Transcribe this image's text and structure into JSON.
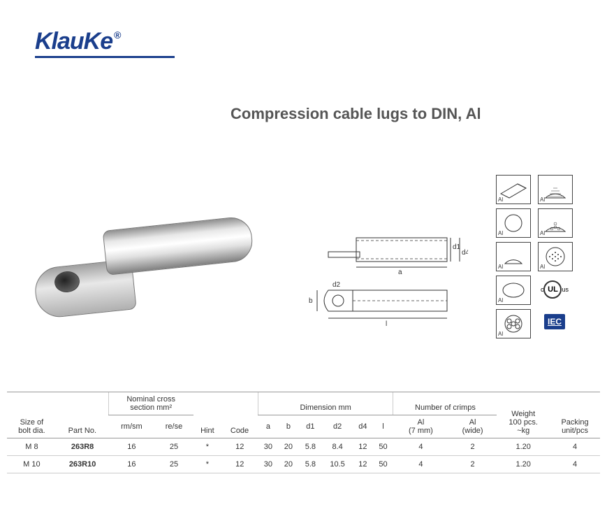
{
  "brand": {
    "name": "KlauKe",
    "registered": "®",
    "color": "#1a3e8c"
  },
  "title": "Compression cable lugs to DIN, Al",
  "drawing": {
    "labels": {
      "a": "a",
      "b": "b",
      "d1": "d1",
      "d2": "d2",
      "d4": "d4",
      "l": "l"
    }
  },
  "icons": {
    "al_label": "Al",
    "ul_c": "c",
    "ul_mark": "UL",
    "ul_us": "us",
    "iec": "IEC"
  },
  "table": {
    "group_headers": {
      "bolt": "Size of\nbolt dia.",
      "partno": "Part No.",
      "ncs": "Nominal cross\nsection mm²",
      "hint": "Hint",
      "code": "Code",
      "dim": "Dimension mm",
      "crimps": "Number of crimps",
      "weight": "Weight\n100 pcs.\n~kg",
      "pack": "Packing\nunit/pcs"
    },
    "sub_headers": {
      "rmsm": "rm/sm",
      "rese": "re/se",
      "a": "a",
      "b": "b",
      "d1": "d1",
      "d2": "d2",
      "d4": "d4",
      "l": "l",
      "al7": "Al\n(7 mm)",
      "alw": "Al\n(wide)"
    },
    "rows": [
      {
        "bolt": "M 8",
        "partno": "263R8",
        "rmsm": "16",
        "rese": "25",
        "hint": "*",
        "code": "12",
        "a": "30",
        "b": "20",
        "d1": "5.8",
        "d2": "8.4",
        "d4": "12",
        "l": "50",
        "al7": "4",
        "alw": "2",
        "weight": "1.20",
        "pack": "4"
      },
      {
        "bolt": "M 10",
        "partno": "263R10",
        "rmsm": "16",
        "rese": "25",
        "hint": "*",
        "code": "12",
        "a": "30",
        "b": "20",
        "d1": "5.8",
        "d2": "10.5",
        "d4": "12",
        "l": "50",
        "al7": "4",
        "alw": "2",
        "weight": "1.20",
        "pack": "4"
      }
    ]
  }
}
